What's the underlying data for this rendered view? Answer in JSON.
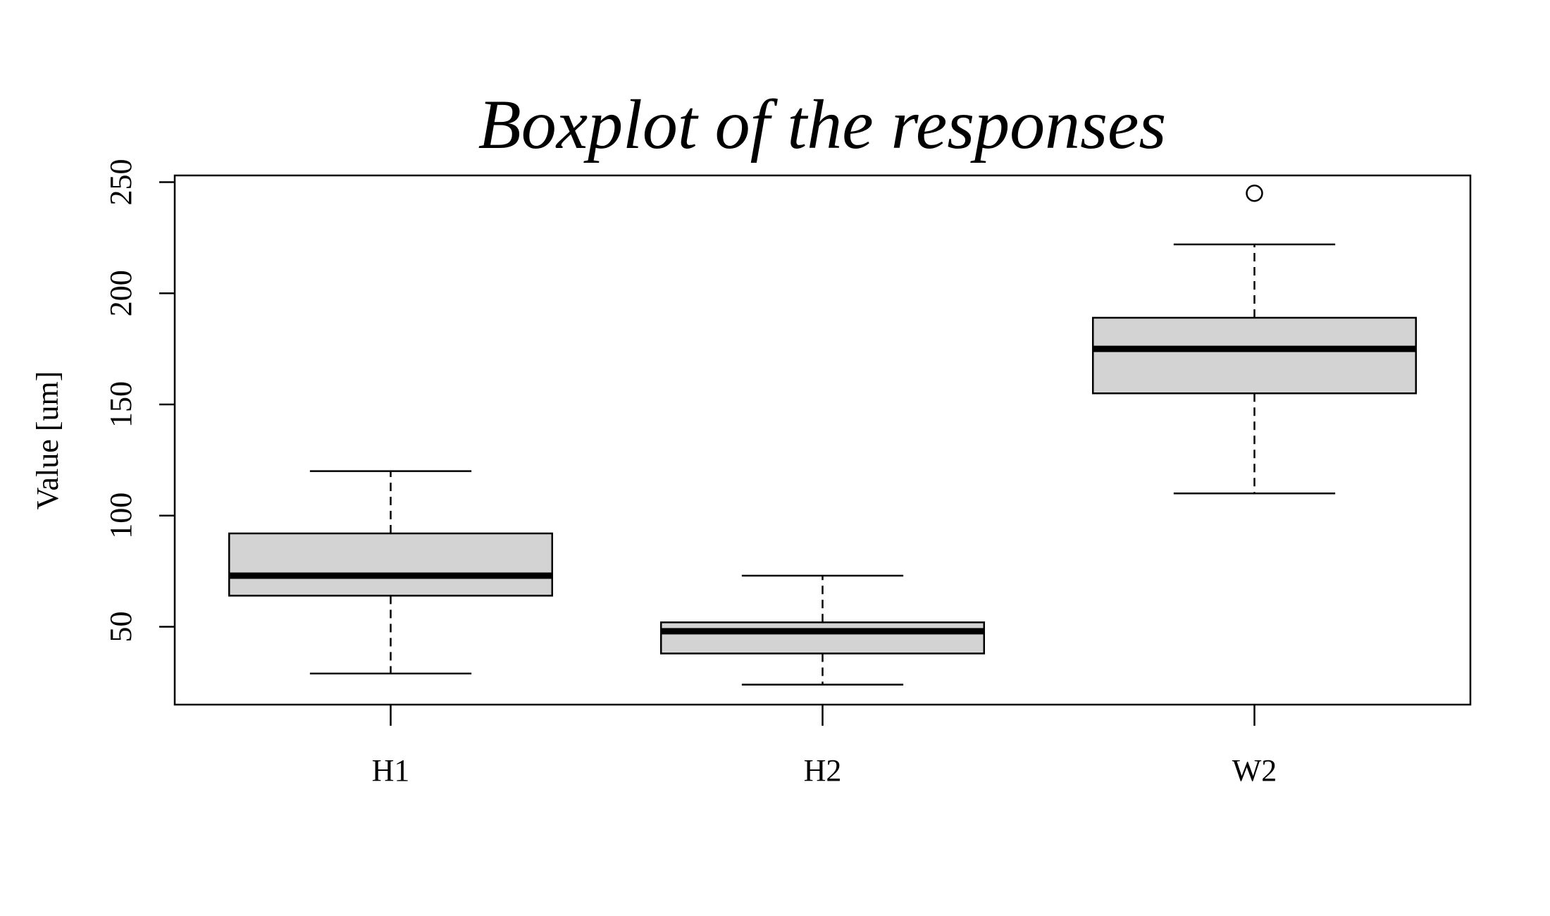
{
  "chart_data": {
    "type": "boxplot",
    "title": "Boxplot of the responses",
    "xlabel": "",
    "ylabel": "Value [um]",
    "categories": [
      "H1",
      "H2",
      "W2"
    ],
    "yticks": [
      50,
      100,
      150,
      200,
      250
    ],
    "ylim": [
      15,
      253
    ],
    "grid": false,
    "legend": "none",
    "box_fill": "#d3d3d3",
    "line_color": "#000000",
    "boxes": [
      {
        "name": "H1",
        "whisker_low": 29,
        "q1": 64,
        "median": 73,
        "q3": 92,
        "whisker_high": 120,
        "outliers": []
      },
      {
        "name": "H2",
        "whisker_low": 24,
        "q1": 38,
        "median": 48,
        "q3": 52,
        "whisker_high": 73,
        "outliers": []
      },
      {
        "name": "W2",
        "whisker_low": 110,
        "q1": 155,
        "median": 175,
        "q3": 189,
        "whisker_high": 222,
        "outliers": [
          245
        ]
      }
    ]
  }
}
